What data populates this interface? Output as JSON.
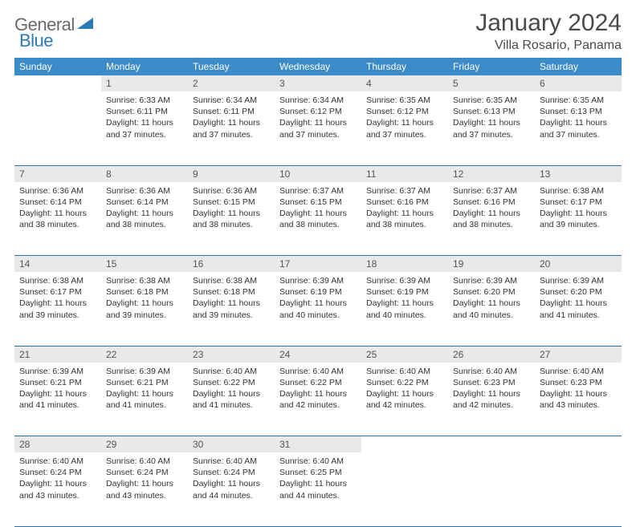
{
  "logo": {
    "general": "General",
    "blue": "Blue"
  },
  "title": "January 2024",
  "location": "Villa Rosario, Panama",
  "colors": {
    "header_bg": "#3b8bc9",
    "header_text": "#ffffff",
    "daynum_bg": "#e9e9e9",
    "row_border": "#2f6fa3",
    "logo_gray": "#6a6a6a",
    "logo_blue": "#2a7ab8"
  },
  "day_headers": [
    "Sunday",
    "Monday",
    "Tuesday",
    "Wednesday",
    "Thursday",
    "Friday",
    "Saturday"
  ],
  "weeks": [
    {
      "nums": [
        "",
        "1",
        "2",
        "3",
        "4",
        "5",
        "6"
      ],
      "cells": [
        null,
        {
          "sunrise": "6:33 AM",
          "sunset": "6:11 PM",
          "daylight": "11 hours and 37 minutes."
        },
        {
          "sunrise": "6:34 AM",
          "sunset": "6:11 PM",
          "daylight": "11 hours and 37 minutes."
        },
        {
          "sunrise": "6:34 AM",
          "sunset": "6:12 PM",
          "daylight": "11 hours and 37 minutes."
        },
        {
          "sunrise": "6:35 AM",
          "sunset": "6:12 PM",
          "daylight": "11 hours and 37 minutes."
        },
        {
          "sunrise": "6:35 AM",
          "sunset": "6:13 PM",
          "daylight": "11 hours and 37 minutes."
        },
        {
          "sunrise": "6:35 AM",
          "sunset": "6:13 PM",
          "daylight": "11 hours and 37 minutes."
        }
      ]
    },
    {
      "nums": [
        "7",
        "8",
        "9",
        "10",
        "11",
        "12",
        "13"
      ],
      "cells": [
        {
          "sunrise": "6:36 AM",
          "sunset": "6:14 PM",
          "daylight": "11 hours and 38 minutes."
        },
        {
          "sunrise": "6:36 AM",
          "sunset": "6:14 PM",
          "daylight": "11 hours and 38 minutes."
        },
        {
          "sunrise": "6:36 AM",
          "sunset": "6:15 PM",
          "daylight": "11 hours and 38 minutes."
        },
        {
          "sunrise": "6:37 AM",
          "sunset": "6:15 PM",
          "daylight": "11 hours and 38 minutes."
        },
        {
          "sunrise": "6:37 AM",
          "sunset": "6:16 PM",
          "daylight": "11 hours and 38 minutes."
        },
        {
          "sunrise": "6:37 AM",
          "sunset": "6:16 PM",
          "daylight": "11 hours and 38 minutes."
        },
        {
          "sunrise": "6:38 AM",
          "sunset": "6:17 PM",
          "daylight": "11 hours and 39 minutes."
        }
      ]
    },
    {
      "nums": [
        "14",
        "15",
        "16",
        "17",
        "18",
        "19",
        "20"
      ],
      "cells": [
        {
          "sunrise": "6:38 AM",
          "sunset": "6:17 PM",
          "daylight": "11 hours and 39 minutes."
        },
        {
          "sunrise": "6:38 AM",
          "sunset": "6:18 PM",
          "daylight": "11 hours and 39 minutes."
        },
        {
          "sunrise": "6:38 AM",
          "sunset": "6:18 PM",
          "daylight": "11 hours and 39 minutes."
        },
        {
          "sunrise": "6:39 AM",
          "sunset": "6:19 PM",
          "daylight": "11 hours and 40 minutes."
        },
        {
          "sunrise": "6:39 AM",
          "sunset": "6:19 PM",
          "daylight": "11 hours and 40 minutes."
        },
        {
          "sunrise": "6:39 AM",
          "sunset": "6:20 PM",
          "daylight": "11 hours and 40 minutes."
        },
        {
          "sunrise": "6:39 AM",
          "sunset": "6:20 PM",
          "daylight": "11 hours and 41 minutes."
        }
      ]
    },
    {
      "nums": [
        "21",
        "22",
        "23",
        "24",
        "25",
        "26",
        "27"
      ],
      "cells": [
        {
          "sunrise": "6:39 AM",
          "sunset": "6:21 PM",
          "daylight": "11 hours and 41 minutes."
        },
        {
          "sunrise": "6:39 AM",
          "sunset": "6:21 PM",
          "daylight": "11 hours and 41 minutes."
        },
        {
          "sunrise": "6:40 AM",
          "sunset": "6:22 PM",
          "daylight": "11 hours and 41 minutes."
        },
        {
          "sunrise": "6:40 AM",
          "sunset": "6:22 PM",
          "daylight": "11 hours and 42 minutes."
        },
        {
          "sunrise": "6:40 AM",
          "sunset": "6:22 PM",
          "daylight": "11 hours and 42 minutes."
        },
        {
          "sunrise": "6:40 AM",
          "sunset": "6:23 PM",
          "daylight": "11 hours and 42 minutes."
        },
        {
          "sunrise": "6:40 AM",
          "sunset": "6:23 PM",
          "daylight": "11 hours and 43 minutes."
        }
      ]
    },
    {
      "nums": [
        "28",
        "29",
        "30",
        "31",
        "",
        "",
        ""
      ],
      "cells": [
        {
          "sunrise": "6:40 AM",
          "sunset": "6:24 PM",
          "daylight": "11 hours and 43 minutes."
        },
        {
          "sunrise": "6:40 AM",
          "sunset": "6:24 PM",
          "daylight": "11 hours and 43 minutes."
        },
        {
          "sunrise": "6:40 AM",
          "sunset": "6:24 PM",
          "daylight": "11 hours and 44 minutes."
        },
        {
          "sunrise": "6:40 AM",
          "sunset": "6:25 PM",
          "daylight": "11 hours and 44 minutes."
        },
        null,
        null,
        null
      ]
    }
  ],
  "labels": {
    "sunrise": "Sunrise:",
    "sunset": "Sunset:",
    "daylight": "Daylight:"
  }
}
